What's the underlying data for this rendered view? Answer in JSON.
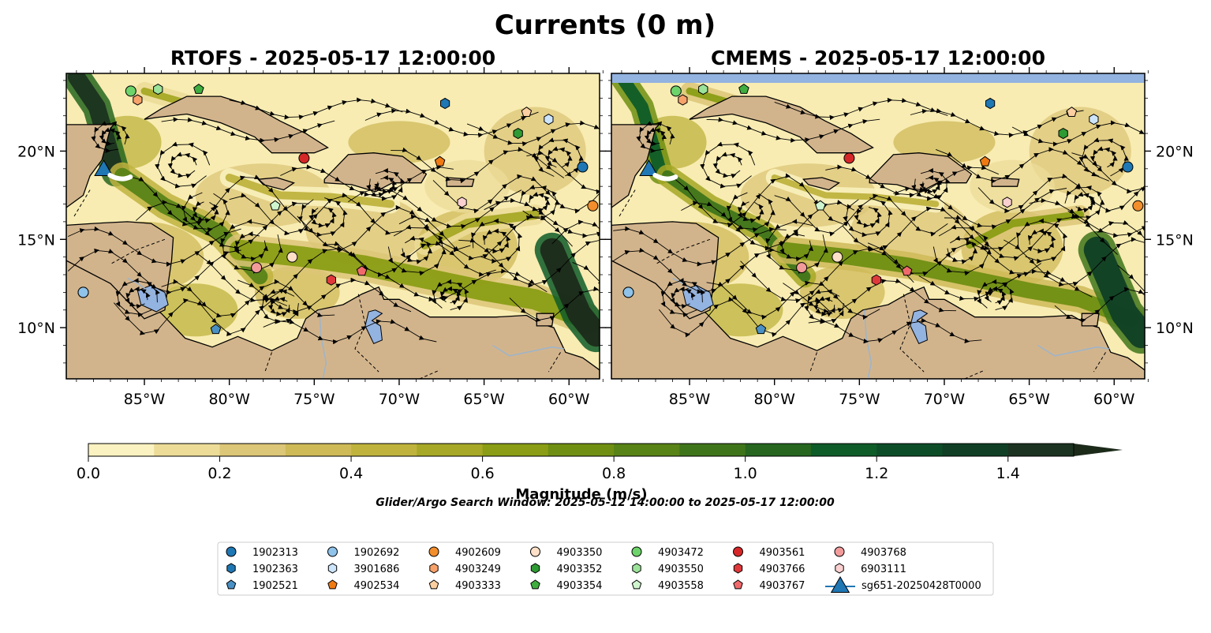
{
  "figure": {
    "title": "Currents (0 m)",
    "search_window": "Glider/Argo Search Window: 2025-05-12 14:00:00 to 2025-05-17 12:00:00"
  },
  "panels": [
    {
      "title": "RTOFS - 2025-05-17 12:00:00",
      "model": "RTOFS",
      "band_top": false
    },
    {
      "title": "CMEMS - 2025-05-17 12:00:00",
      "model": "CMEMS",
      "band_top": true
    }
  ],
  "colorbar": {
    "label": "Magnitude (m/s)",
    "ticks": [
      "0.0",
      "0.2",
      "0.4",
      "0.6",
      "0.8",
      "1.0",
      "1.2",
      "1.4"
    ],
    "colors": [
      "#faf2c0",
      "#ecdc98",
      "#dcc677",
      "#cfba58",
      "#bfb33e",
      "#a6a826",
      "#8a9d14",
      "#6f8f12",
      "#588317",
      "#3f751a",
      "#26661f",
      "#0e5c28",
      "#0c4d27",
      "#103f25",
      "#1b3320",
      "#1c2a1a"
    ]
  },
  "map": {
    "ocean_low": "#f8ecb2",
    "land_color": "#d2b48c",
    "lake_color": "#93b3e0",
    "x_ticks": [
      "85°W",
      "80°W",
      "75°W",
      "70°W",
      "65°W",
      "60°W"
    ],
    "y_ticks": [
      "10°N",
      "15°N",
      "20°N"
    ]
  },
  "chart_data": {
    "type": "scatter",
    "title": "Currents (0 m)",
    "xlabel": "",
    "ylabel": "",
    "xlim": [
      -89.6,
      -58.2
    ],
    "ylim": [
      7.1,
      24.4
    ],
    "series": [
      {
        "name": "1902313",
        "marker": "circle",
        "color": "#1f77b4",
        "x": [
          -59.2,
          -88.6
        ],
        "y": [
          19.1,
          12.0
        ]
      },
      {
        "name": "1902363",
        "marker": "hexagon",
        "color": "#1f77b4",
        "x": [
          -67.3
        ],
        "y": [
          22.7
        ]
      },
      {
        "name": "1902521",
        "marker": "pentagon",
        "color": "#4a90c4",
        "x": [
          -80.8
        ],
        "y": [
          9.9
        ]
      },
      {
        "name": "1902692",
        "marker": "circle",
        "color": "#8fc3ea",
        "x": [
          -88.6
        ],
        "y": [
          12.0
        ]
      },
      {
        "name": "3901686",
        "marker": "hexagon",
        "color": "#cde5fb",
        "x": [
          -61.2
        ],
        "y": [
          21.8
        ]
      },
      {
        "name": "4902534",
        "marker": "pentagon",
        "color": "#f07a12",
        "x": [
          -67.6
        ],
        "y": [
          19.4
        ]
      },
      {
        "name": "4902609",
        "marker": "circle",
        "color": "#f28e2c",
        "x": [
          -58.6
        ],
        "y": [
          16.9
        ]
      },
      {
        "name": "4903249",
        "marker": "hexagon",
        "color": "#f7a26a",
        "x": [
          -85.4
        ],
        "y": [
          22.9
        ]
      },
      {
        "name": "4903333",
        "marker": "pentagon",
        "color": "#fbcfa1",
        "x": [
          -62.5
        ],
        "y": [
          22.2
        ]
      },
      {
        "name": "4903350",
        "marker": "circle",
        "color": "#fde0c7",
        "x": [
          -76.3
        ],
        "y": [
          14.0
        ]
      },
      {
        "name": "4903352",
        "marker": "hexagon",
        "color": "#2e9a33",
        "x": [
          -63.0
        ],
        "y": [
          21.0
        ]
      },
      {
        "name": "4903354",
        "marker": "pentagon",
        "color": "#3fae3f",
        "x": [
          -81.8
        ],
        "y": [
          23.5
        ]
      },
      {
        "name": "4903472",
        "marker": "circle",
        "color": "#6dd36b",
        "x": [
          -85.8
        ],
        "y": [
          23.4
        ]
      },
      {
        "name": "4903550",
        "marker": "hexagon",
        "color": "#9ce39a",
        "x": [
          -84.2
        ],
        "y": [
          23.5
        ]
      },
      {
        "name": "4903558",
        "marker": "pentagon",
        "color": "#cff5cf",
        "x": [
          -77.3
        ],
        "y": [
          16.9
        ]
      },
      {
        "name": "4903561",
        "marker": "circle",
        "color": "#d62728",
        "x": [
          -75.6
        ],
        "y": [
          19.6
        ]
      },
      {
        "name": "4903766",
        "marker": "hexagon",
        "color": "#e0393b",
        "x": [
          -74.0
        ],
        "y": [
          12.7
        ]
      },
      {
        "name": "4903767",
        "marker": "pentagon",
        "color": "#f06a6c",
        "x": [
          -72.2
        ],
        "y": [
          13.2
        ]
      },
      {
        "name": "4903768",
        "marker": "circle",
        "color": "#f29b9b",
        "x": [
          -78.4
        ],
        "y": [
          13.4
        ]
      },
      {
        "name": "6903111",
        "marker": "hexagon",
        "color": "#fbd0d0",
        "x": [
          -66.3
        ],
        "y": [
          17.1
        ]
      },
      {
        "name": "sg651-20250428T0000",
        "marker": "triangle",
        "color": "#1f77b4",
        "x": [
          -87.4
        ],
        "y": [
          18.9
        ]
      }
    ]
  }
}
